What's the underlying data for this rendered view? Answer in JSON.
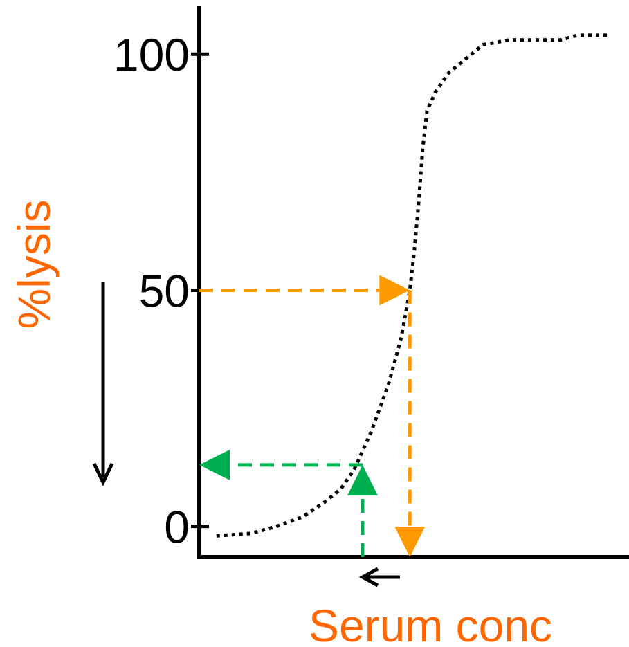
{
  "chart_data": {
    "type": "line",
    "title": "",
    "xlabel": "Serum conc",
    "ylabel": "%lysis",
    "ylim": [
      -6.5,
      110
    ],
    "xlim": [
      0,
      100
    ],
    "yticks": [
      {
        "value": 0,
        "label": "0"
      },
      {
        "value": 50,
        "label": "50"
      },
      {
        "value": 100,
        "label": "100"
      }
    ],
    "grid": false,
    "legend": "none",
    "series": [
      {
        "style": "dotted",
        "color": "#000000",
        "x": [
          4,
          12,
          18,
          24,
          29,
          33,
          36,
          38,
          40,
          42,
          44,
          45.5,
          47,
          48,
          49,
          50,
          51,
          52,
          53,
          55,
          58,
          62,
          66,
          72,
          78,
          84,
          88,
          91,
          95
        ],
        "y": [
          -2,
          -1.5,
          0,
          2,
          5,
          8,
          12,
          16,
          20,
          25,
          30,
          35,
          40,
          45,
          50,
          58,
          68,
          80,
          88,
          92,
          96,
          99,
          102,
          103,
          103,
          103,
          104,
          104,
          104
        ]
      }
    ],
    "annotations": [
      {
        "kind": "dashed-arrow",
        "color": "#FF9900",
        "points": [
          [
            0,
            50
          ],
          [
            49,
            50
          ]
        ],
        "head": "end"
      },
      {
        "kind": "dashed-arrow",
        "color": "#FF9900",
        "points": [
          [
            49,
            50
          ],
          [
            49,
            -6.5
          ]
        ],
        "head": "end"
      },
      {
        "kind": "dashed-arrow",
        "color": "#00B050",
        "points": [
          [
            38,
            -6.5
          ],
          [
            38,
            13
          ]
        ],
        "head": "end"
      },
      {
        "kind": "dashed-arrow",
        "color": "#00B050",
        "points": [
          [
            38,
            13
          ],
          [
            0,
            13
          ]
        ],
        "head": "end"
      },
      {
        "kind": "arrow",
        "color": "#000000",
        "description": "down arrow beside y-axis"
      },
      {
        "kind": "arrow",
        "color": "#000000",
        "description": "left arrow below x-axis"
      }
    ],
    "colors": {
      "axis": "#000000",
      "labels": "#FF6600"
    }
  }
}
